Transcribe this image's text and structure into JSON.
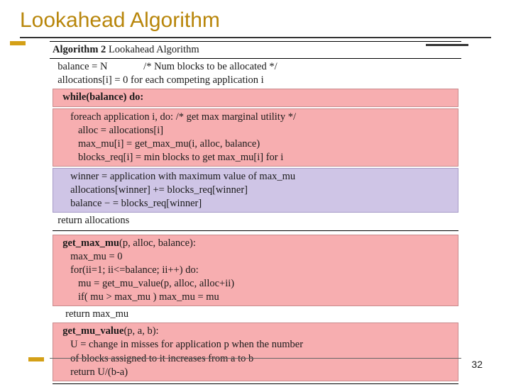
{
  "title": "Lookahead Algorithm",
  "page_number": "32",
  "colors": {
    "title_color": "#b8860b",
    "accent_color": "#d4a017",
    "pink_bg": "#f7aeb0",
    "pink_border": "#c98b8d",
    "lilac_bg": "#cfc5e6",
    "lilac_border": "#a79bc7",
    "text_color": "#1a1a1a",
    "bg": "#ffffff"
  },
  "algo": {
    "header_label": "Algorithm 2",
    "header_title": "Lookahead Algorithm",
    "l1": "  balance = N              /* Num blocks to be allocated */",
    "l2": "  allocations[i] = 0 for each competing application i",
    "l3": "  while(balance) do:",
    "l4": "     foreach application i, do: /* get max marginal utility */",
    "l5": "        alloc = allocations[i]",
    "l6": "        max_mu[i] = get_max_mu(i, alloc, balance)",
    "l7": "        blocks_req[i] = min blocks to get max_mu[i] for i",
    "l8": "     winner = application with maximum value of max_mu",
    "l9": "     allocations[winner] += blocks_req[winner]",
    "l10": "     balance − = blocks_req[winner]",
    "l11": "  return allocations",
    "l12a": "  get_max_mu",
    "l12b": "(p, alloc, balance):",
    "l13": "     max_mu = 0",
    "l14": "     for(ii=1; ii<=balance; ii++) do:",
    "l15": "        mu = get_mu_value(p, alloc, alloc+ii)",
    "l16": "        if( mu > max_mu ) max_mu = mu",
    "l17": "     return max_mu",
    "l18a": "  get_mu_value",
    "l18b": "(p, a, b):",
    "l19": "     U = change in misses for application p when the number",
    "l20": "     of blocks assigned to it increases from a to b",
    "l21": "     return U/(b-a)"
  }
}
